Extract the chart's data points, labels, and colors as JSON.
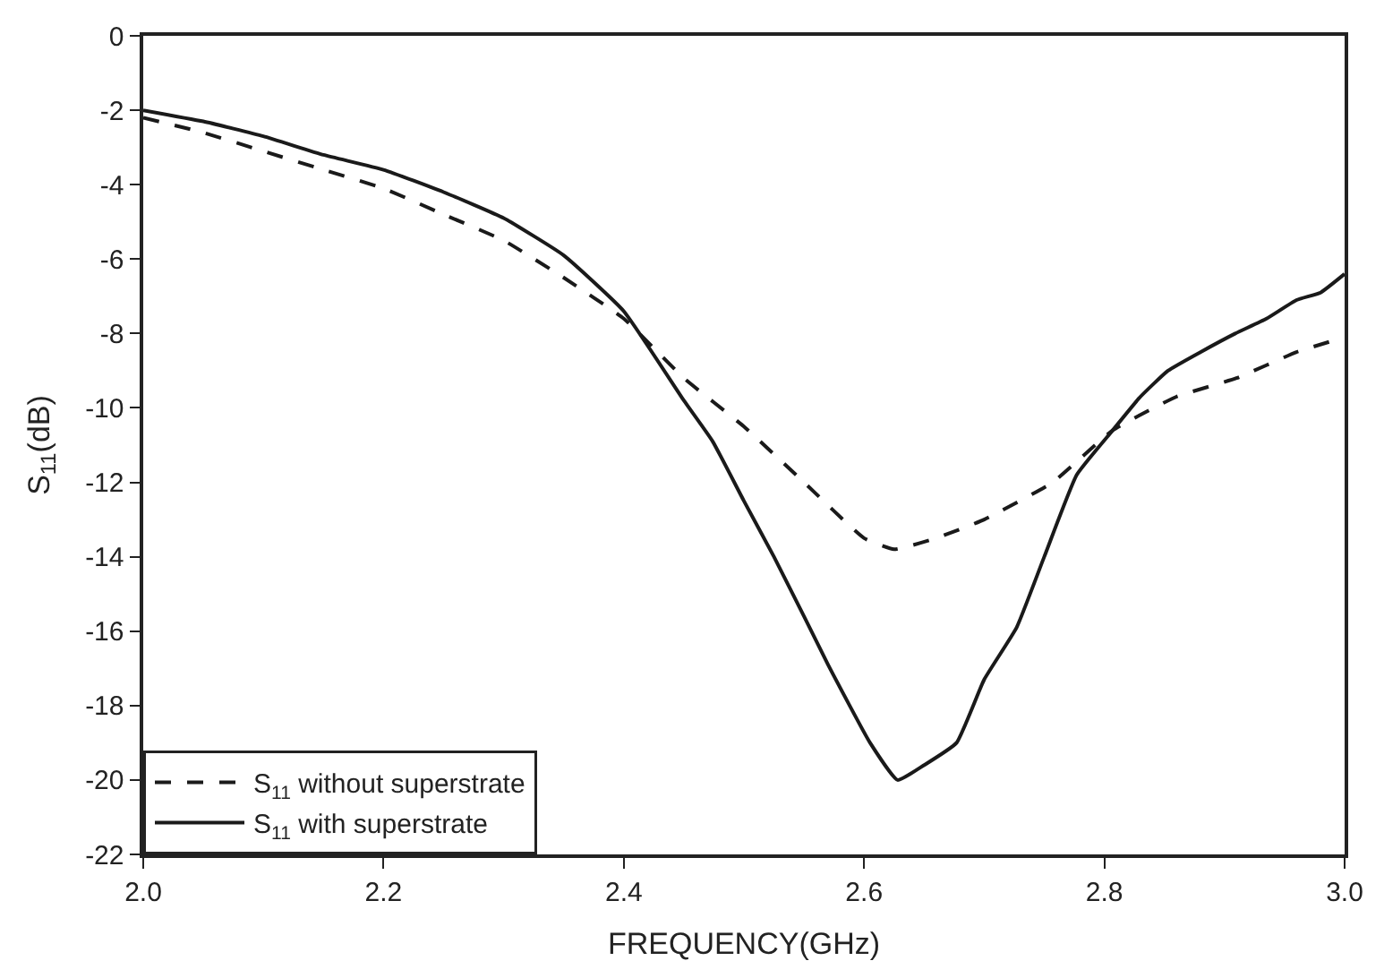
{
  "chart_data": {
    "type": "line",
    "xlabel": "FREQUENCY(GHz)",
    "ylabel": "S$_{11}$(dB)",
    "xlim": [
      2.0,
      3.0
    ],
    "xticks": [
      {
        "value": 2.0,
        "label": "2.0"
      },
      2.2,
      2.4,
      2.6,
      2.8,
      {
        "value": 3.0,
        "label": "3.0"
      }
    ],
    "ylim": [
      -22,
      0
    ],
    "yticks": [
      -22,
      -20,
      -18,
      -16,
      -14,
      -12,
      -10,
      -8,
      -6,
      -4,
      -2,
      0
    ],
    "grid": false,
    "legend": "bottom left",
    "marker": "none",
    "series": [
      {
        "name": "S$_{11}$ without superstrate",
        "color": "#1a1a1a",
        "line_style": "dashed",
        "x": [
          2.0,
          2.05,
          2.1,
          2.15,
          2.2,
          2.25,
          2.3,
          2.35,
          2.4,
          2.45,
          2.5,
          2.55,
          2.6,
          2.625,
          2.66,
          2.7,
          2.757,
          2.807,
          2.86,
          2.91,
          2.96,
          3.0
        ],
        "values": [
          -2.2,
          -2.6,
          -3.1,
          -3.6,
          -4.1,
          -4.8,
          -5.5,
          -6.5,
          -7.6,
          -9.2,
          -10.5,
          -12.0,
          -13.5,
          -13.8,
          -13.5,
          -13.0,
          -12.0,
          -10.6,
          -9.7,
          -9.2,
          -8.5,
          -8.1
        ]
      },
      {
        "name": "S$_{11}$ with superstrate",
        "color": "#1a1a1a",
        "line_style": "solid",
        "x": [
          2.0,
          2.05,
          2.1,
          2.15,
          2.2,
          2.25,
          2.3,
          2.35,
          2.4,
          2.45,
          2.474,
          2.5,
          2.525,
          2.55,
          2.57,
          2.605,
          2.628,
          2.65,
          2.677,
          2.7,
          2.727,
          2.75,
          2.777,
          2.807,
          2.83,
          2.853,
          2.88,
          2.909,
          2.935,
          2.96,
          2.98,
          3.0
        ],
        "values": [
          -2.0,
          -2.3,
          -2.7,
          -3.2,
          -3.6,
          -4.2,
          -4.9,
          -5.9,
          -7.4,
          -9.8,
          -10.9,
          -12.5,
          -14.0,
          -15.6,
          -16.9,
          -19.0,
          -20.0,
          -19.6,
          -19.0,
          -17.3,
          -15.9,
          -14.0,
          -11.8,
          -10.6,
          -9.7,
          -9.0,
          -8.5,
          -8.0,
          -7.6,
          -7.1,
          -6.9,
          -6.4
        ]
      }
    ]
  }
}
